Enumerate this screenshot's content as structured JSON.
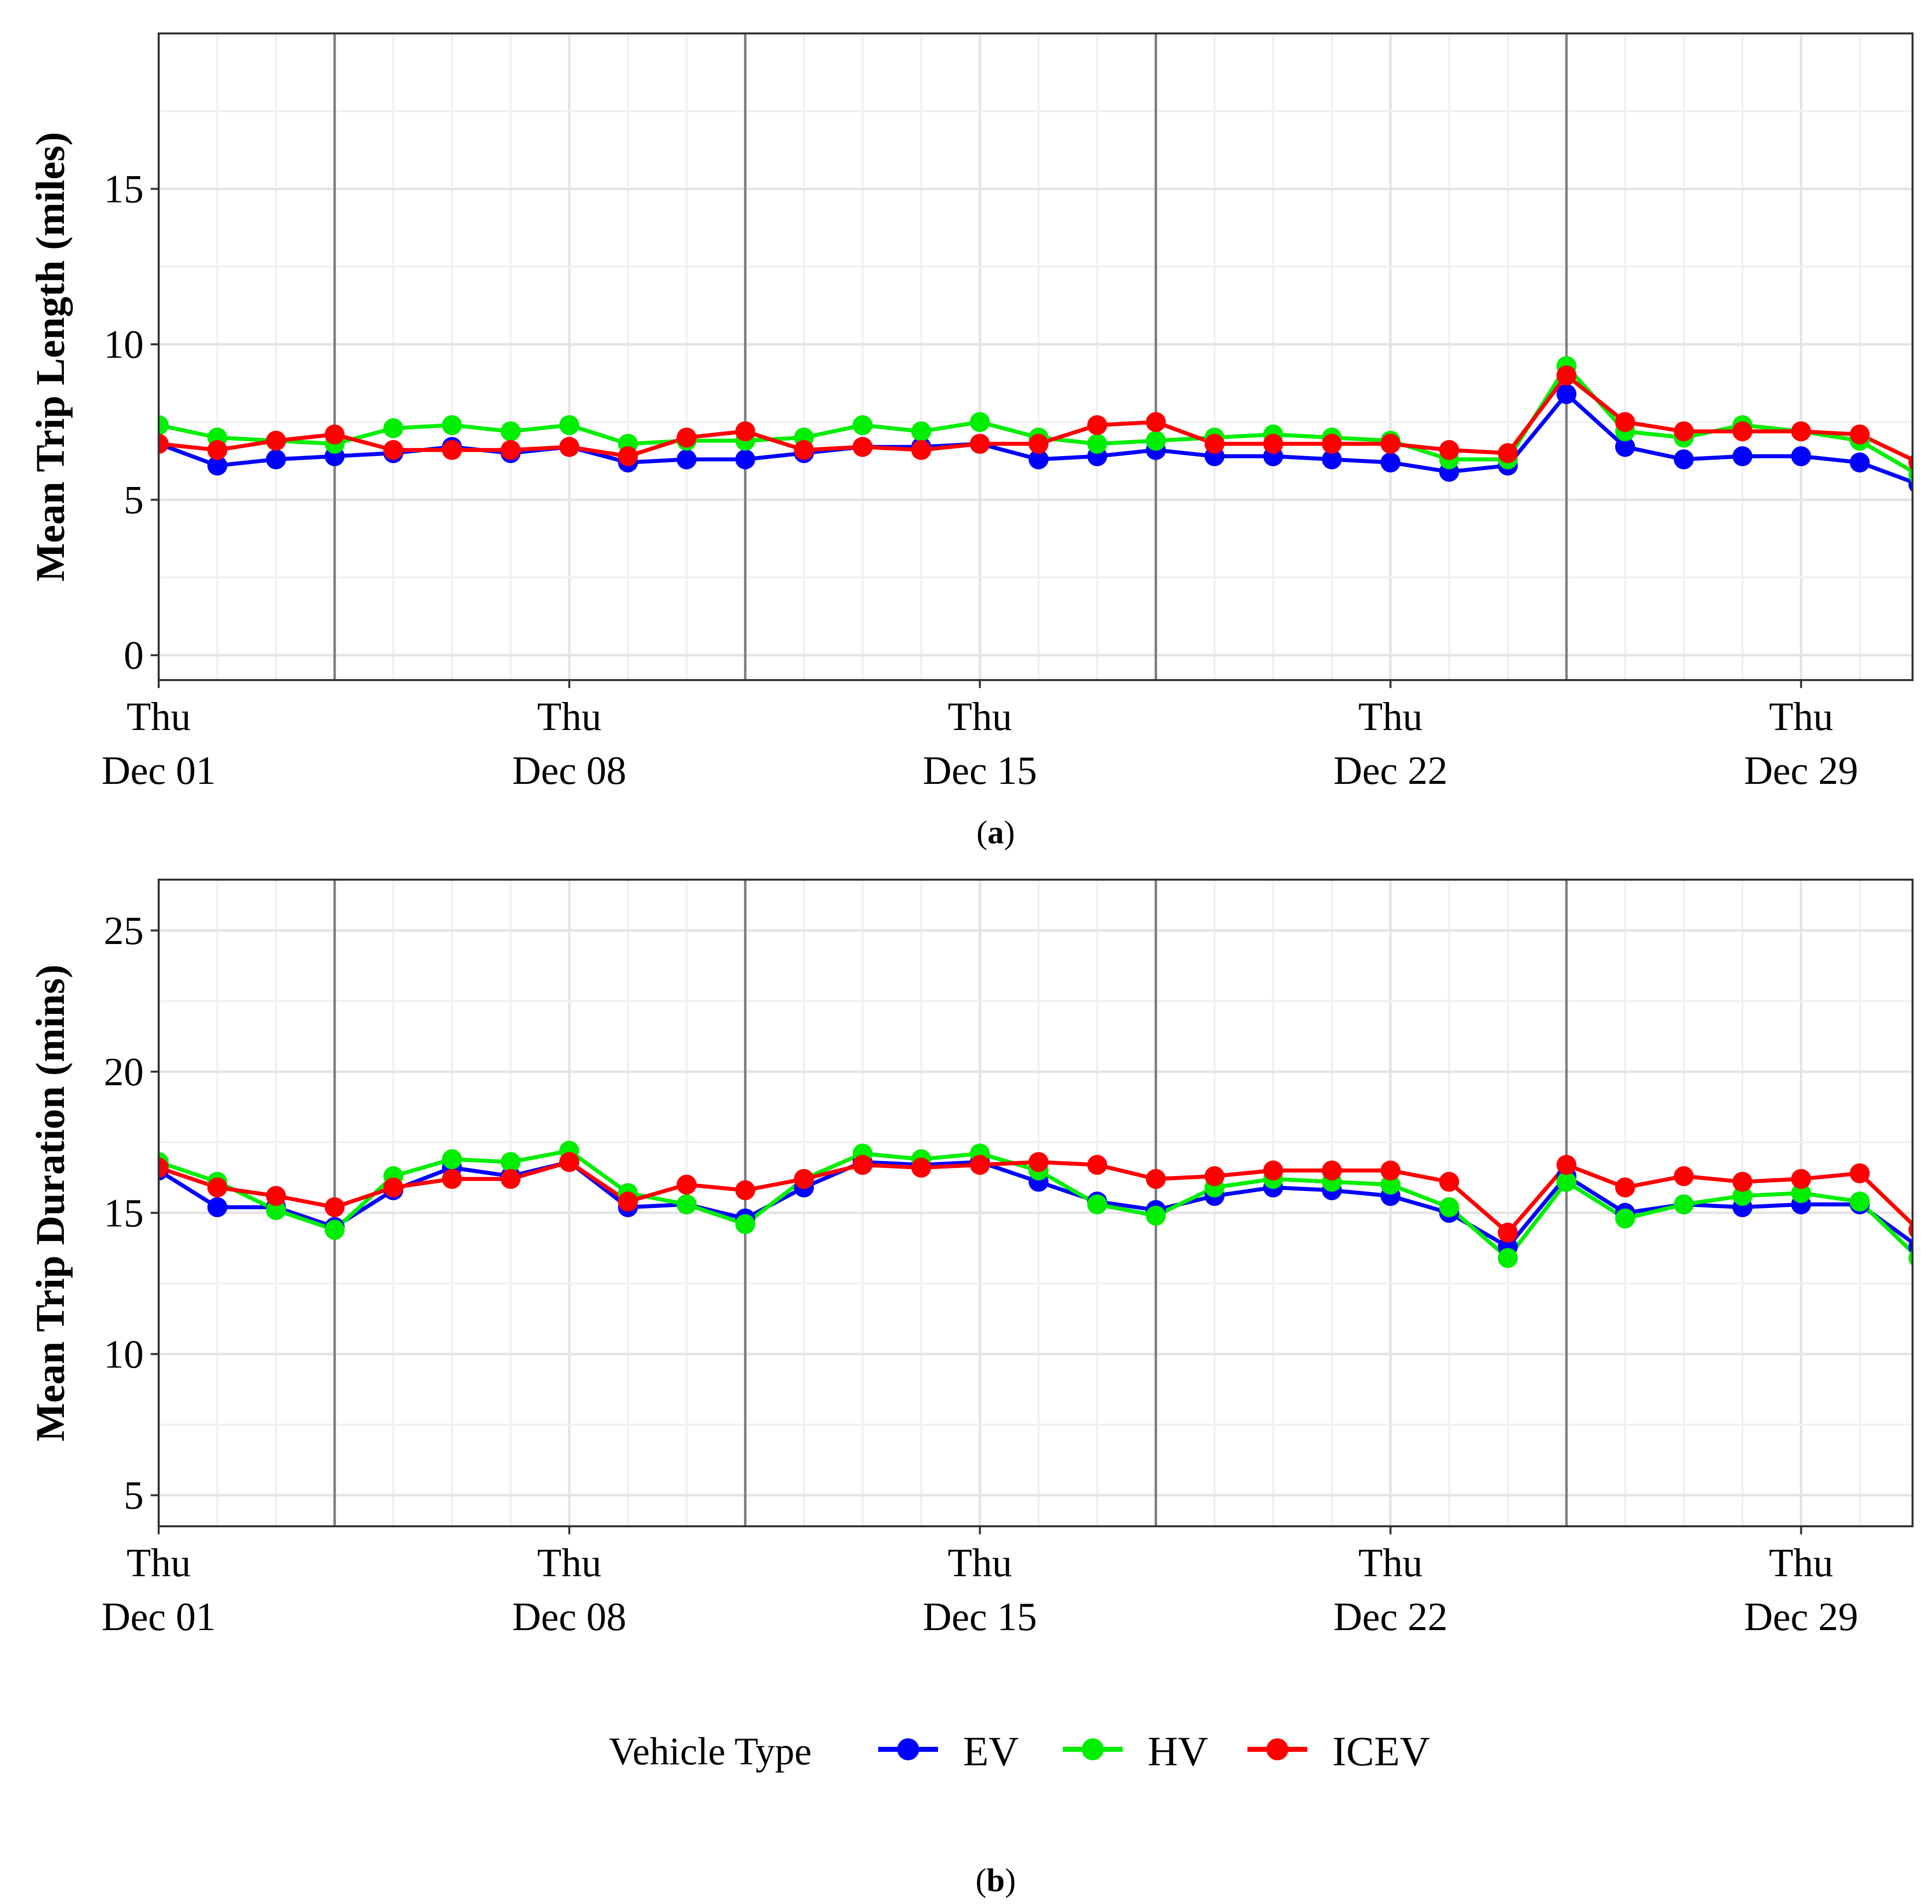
{
  "colors": {
    "EV": "#0000ff",
    "HV": "#00ee00",
    "ICEV": "#ff0000",
    "gridMinor": "#f0f0f0",
    "gridMajor": "#e4e4e4",
    "weekLine": "#7f7f7f",
    "border": "#333333"
  },
  "legend": {
    "title": "Vehicle Type",
    "items": [
      {
        "key": "EV",
        "label": "EV"
      },
      {
        "key": "HV",
        "label": "HV"
      },
      {
        "key": "ICEV",
        "label": "ICEV"
      }
    ]
  },
  "chart_data": [
    {
      "type": "line",
      "panel_label": {
        "open": "(",
        "letter": "a",
        "close": ")"
      },
      "ylabel": "Mean Trip Length (miles)",
      "ylim": [
        -0.8,
        20
      ],
      "yticks": [
        0,
        5,
        10,
        15
      ],
      "yticks_labels": [
        "0",
        "5",
        "10",
        "15"
      ],
      "xlim": [
        1,
        30.9
      ],
      "x": [
        1,
        2,
        3,
        4,
        5,
        6,
        7,
        8,
        9,
        10,
        11,
        12,
        13,
        14,
        15,
        16,
        17,
        18,
        19,
        20,
        21,
        22,
        23,
        24,
        25,
        26,
        27,
        28,
        29,
        30,
        31
      ],
      "x_labels": [
        {
          "day": 1,
          "line1": "Thu",
          "line2": "Dec 01"
        },
        {
          "day": 8,
          "line1": "Thu",
          "line2": "Dec 08"
        },
        {
          "day": 15,
          "line1": "Thu",
          "line2": "Dec 15"
        },
        {
          "day": 22,
          "line1": "Thu",
          "line2": "Dec 22"
        },
        {
          "day": 29,
          "line1": "Thu",
          "line2": "Dec 29"
        }
      ],
      "week_lines": [
        4,
        11,
        18,
        25
      ],
      "series": [
        {
          "name": "EV",
          "values": [
            6.8,
            6.1,
            6.3,
            6.4,
            6.5,
            6.7,
            6.5,
            6.7,
            6.2,
            6.3,
            6.3,
            6.5,
            6.7,
            6.7,
            6.8,
            6.3,
            6.4,
            6.6,
            6.4,
            6.4,
            6.3,
            6.2,
            5.9,
            6.1,
            8.4,
            6.7,
            6.3,
            6.4,
            6.4,
            6.2,
            5.5
          ]
        },
        {
          "name": "HV",
          "values": [
            7.4,
            7.0,
            6.9,
            6.8,
            7.3,
            7.4,
            7.2,
            7.4,
            6.8,
            6.9,
            6.9,
            7.0,
            7.4,
            7.2,
            7.5,
            7.0,
            6.8,
            6.9,
            7.0,
            7.1,
            7.0,
            6.9,
            6.3,
            6.3,
            9.3,
            7.2,
            7.0,
            7.4,
            7.2,
            6.9,
            5.8
          ]
        },
        {
          "name": "ICEV",
          "values": [
            6.8,
            6.6,
            6.9,
            7.1,
            6.6,
            6.6,
            6.6,
            6.7,
            6.4,
            7.0,
            7.2,
            6.6,
            6.7,
            6.6,
            6.8,
            6.8,
            7.4,
            7.5,
            6.8,
            6.8,
            6.8,
            6.8,
            6.6,
            6.5,
            9.0,
            7.5,
            7.2,
            7.2,
            7.2,
            7.1,
            6.2
          ]
        }
      ]
    },
    {
      "type": "line",
      "panel_label": {
        "open": "(",
        "letter": "b",
        "close": ")"
      },
      "ylabel": "Mean Trip Duration (mins)",
      "ylim": [
        3.9,
        26.8
      ],
      "yticks": [
        5,
        10,
        15,
        20,
        25
      ],
      "yticks_labels": [
        "5",
        "10",
        "15",
        "20",
        "25"
      ],
      "xlim": [
        1,
        30.9
      ],
      "x": [
        1,
        2,
        3,
        4,
        5,
        6,
        7,
        8,
        9,
        10,
        11,
        12,
        13,
        14,
        15,
        16,
        17,
        18,
        19,
        20,
        21,
        22,
        23,
        24,
        25,
        26,
        27,
        28,
        29,
        30,
        31
      ],
      "x_labels": [
        {
          "day": 1,
          "line1": "Thu",
          "line2": "Dec 01"
        },
        {
          "day": 8,
          "line1": "Thu",
          "line2": "Dec 08"
        },
        {
          "day": 15,
          "line1": "Thu",
          "line2": "Dec 15"
        },
        {
          "day": 22,
          "line1": "Thu",
          "line2": "Dec 22"
        },
        {
          "day": 29,
          "line1": "Thu",
          "line2": "Dec 29"
        }
      ],
      "week_lines": [
        4,
        11,
        18,
        25
      ],
      "series": [
        {
          "name": "EV",
          "values": [
            16.5,
            15.2,
            15.2,
            14.5,
            15.8,
            16.6,
            16.3,
            16.8,
            15.2,
            15.3,
            14.8,
            15.9,
            16.8,
            16.7,
            16.8,
            16.1,
            15.4,
            15.1,
            15.6,
            15.9,
            15.8,
            15.6,
            15.0,
            13.8,
            16.3,
            15.0,
            15.3,
            15.2,
            15.3,
            15.3,
            13.8
          ]
        },
        {
          "name": "HV",
          "values": [
            16.8,
            16.1,
            15.1,
            14.4,
            16.3,
            16.9,
            16.8,
            17.2,
            15.7,
            15.3,
            14.6,
            16.2,
            17.1,
            16.9,
            17.1,
            16.5,
            15.3,
            14.9,
            15.9,
            16.2,
            16.1,
            16.0,
            15.2,
            13.4,
            16.1,
            14.8,
            15.3,
            15.6,
            15.7,
            15.4,
            13.4
          ]
        },
        {
          "name": "ICEV",
          "values": [
            16.6,
            15.9,
            15.6,
            15.2,
            15.9,
            16.2,
            16.2,
            16.8,
            15.4,
            16.0,
            15.8,
            16.2,
            16.7,
            16.6,
            16.7,
            16.8,
            16.7,
            16.2,
            16.3,
            16.5,
            16.5,
            16.5,
            16.1,
            14.3,
            16.7,
            15.9,
            16.3,
            16.1,
            16.2,
            16.4,
            14.4
          ]
        }
      ]
    }
  ]
}
